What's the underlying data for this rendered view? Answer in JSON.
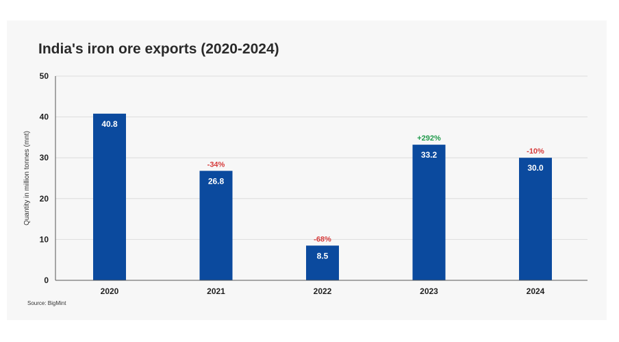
{
  "chart_data": {
    "type": "bar",
    "title": "India's iron ore exports (2020-2024)",
    "ylabel": "Quantity in million tonnes (mnt)",
    "xlabel": "",
    "ylim": [
      0,
      50
    ],
    "yticks": [
      0,
      10,
      20,
      30,
      40,
      50
    ],
    "grid": true,
    "categories": [
      "2020",
      "2021",
      "2022",
      "2023",
      "2024"
    ],
    "values": [
      40.8,
      26.8,
      8.5,
      33.2,
      30.0
    ],
    "value_labels": [
      "40.8",
      "26.8",
      "8.5",
      "33.2",
      "30.0"
    ],
    "change_labels": [
      "",
      "-34%",
      "-68%",
      "+292%",
      "-10%"
    ],
    "source": "Source: BigMint",
    "colors": {
      "bar": "#0b4a9e",
      "negative": "#d63b3b",
      "positive": "#1f9a4a",
      "grid": "#dcdcdc",
      "axis": "#555555"
    }
  }
}
